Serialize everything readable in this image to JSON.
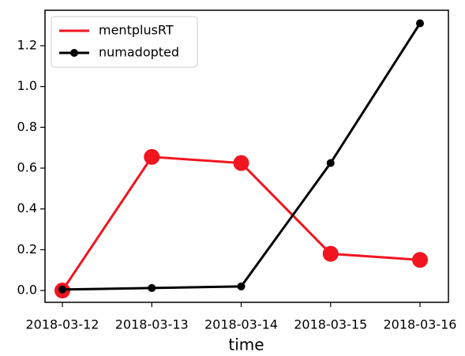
{
  "chart_data": {
    "type": "line",
    "x": [
      "2018-03-12",
      "2018-03-13",
      "2018-03-14",
      "2018-03-15",
      "2018-03-16"
    ],
    "series": [
      {
        "name": "mentplusRT",
        "color": "#f0151f",
        "marker": "circle-large",
        "values": [
          0,
          0.655,
          0.625,
          0.18,
          0.15
        ]
      },
      {
        "name": "numadopted",
        "color": "#000000",
        "marker": "circle-small",
        "values": [
          0.005,
          0.012,
          0.02,
          0.625,
          1.31
        ]
      }
    ],
    "xlabel": "time",
    "xlim": [
      "2018-03-12",
      "2018-03-16"
    ],
    "xticks": [
      "2018-03-12",
      "2018-03-13",
      "2018-03-14",
      "2018-03-15",
      "2018-03-16"
    ],
    "ylim": [
      -0.058,
      1.374
    ],
    "yticks": [
      {
        "value": 0,
        "label": "0.0"
      },
      {
        "value": 0.2,
        "label": "0.2"
      },
      {
        "value": 0.4,
        "label": "0.4"
      },
      {
        "value": 0.6,
        "label": "0.6"
      },
      {
        "value": 0.8,
        "label": "0.8"
      },
      {
        "value": 1,
        "label": "1.0"
      },
      {
        "value": 1.2,
        "label": "1.2"
      }
    ],
    "legend": "upper-left",
    "grid": false
  }
}
